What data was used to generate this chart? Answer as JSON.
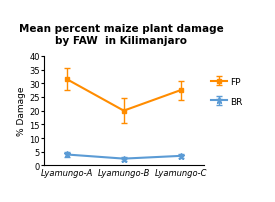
{
  "title_line1": "Mean percent maize plant damage",
  "title_line2": "by FAW  in Kilimanjaro",
  "xlabel_labels": [
    "Lyamungo-A",
    "Lyamungo-B",
    "Lyamungo-C"
  ],
  "ylabel": "% Damage",
  "ylim": [
    0,
    40
  ],
  "yticks": [
    0,
    5,
    10,
    15,
    20,
    25,
    30,
    35,
    40
  ],
  "fp_values": [
    31.5,
    20.0,
    27.5
  ],
  "fp_errors": [
    4.0,
    4.5,
    3.5
  ],
  "br_values": [
    4.0,
    2.5,
    3.5
  ],
  "br_errors": [
    0.8,
    0.7,
    0.8
  ],
  "fp_color": "#FF8C00",
  "br_color": "#5B9BD5",
  "background_color": "#FFFFFF",
  "title_fontsize": 7.5,
  "axis_label_fontsize": 6.5,
  "tick_fontsize": 6.0,
  "legend_fontsize": 6.5
}
